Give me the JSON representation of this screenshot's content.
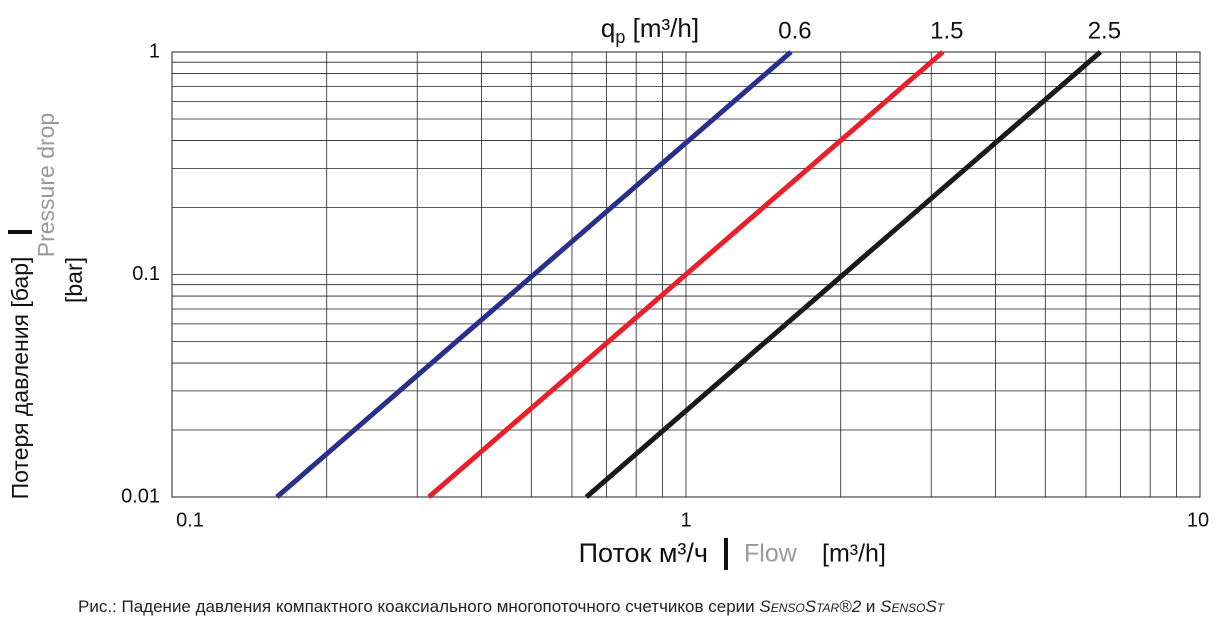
{
  "chart_data": {
    "type": "line",
    "annotation": {
      "q": "q",
      "sub": "p",
      "unit": " [m³/h]"
    },
    "series": [
      {
        "name": "0.6",
        "color": "#2b2f8c",
        "x": [
          0.16,
          1.6
        ],
        "values": [
          0.01,
          1
        ]
      },
      {
        "name": "1.5",
        "color": "#e8202a",
        "x": [
          0.316,
          3.16
        ],
        "values": [
          0.01,
          1
        ]
      },
      {
        "name": "2.5",
        "color": "#1a1a1a",
        "x": [
          0.64,
          6.4
        ],
        "values": [
          0.01,
          1
        ]
      }
    ],
    "xlim": [
      0.1,
      10
    ],
    "ylim": [
      0.01,
      1
    ],
    "xticks": [
      0.1,
      1,
      10
    ],
    "yticks": [
      0.01,
      0.1,
      1
    ],
    "log_x": true,
    "log_y": true,
    "grid": true,
    "minor_grid": true,
    "ylabel": {
      "ru": "Потеря давления [бар]",
      "en": "Pressure drop",
      "unit": "[bar]"
    },
    "xlabel": {
      "ru": "Поток м³/ч",
      "en": "Flow",
      "unit": "[m³/h]"
    },
    "caption": [
      "Рис.: Падение давления компактного коаксиального многопоточного счетчиков серии ",
      "SensoStar®2",
      " и ",
      "SensoSt"
    ]
  }
}
